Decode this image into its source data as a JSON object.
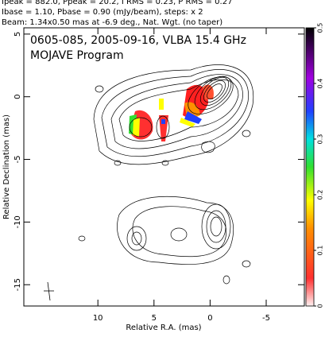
{
  "chart_data": {
    "type": "contour",
    "header": [
      "Ipeak = 882.0, Ppeak = 20.2, I RMS = 0.23, P RMS = 0.27",
      "Ibase = 1.10, Pbase = 0.90 (mJy/beam), steps: x 2",
      "Beam: 1.34x0.50 mas at -6.9 deg., Nat. Wgt. (no taper)"
    ],
    "title": "0605-085, 2005-09-16, VLBA 15.4 GHz",
    "subtitle": "MOJAVE Program",
    "xlabel": "Relative R.A. (mas)",
    "ylabel": "Relative Declination (mas)",
    "xlim": [
      16.6,
      -8.4
    ],
    "xticks": [
      10,
      5,
      0,
      -5
    ],
    "ylim": [
      -16.7,
      5.5
    ],
    "yticks": [
      5,
      0,
      -5,
      -10,
      -15
    ],
    "clim": [
      0,
      0.5
    ],
    "cticks": [
      0,
      0.1,
      0.2,
      0.3,
      0.4,
      0.5
    ]
  }
}
